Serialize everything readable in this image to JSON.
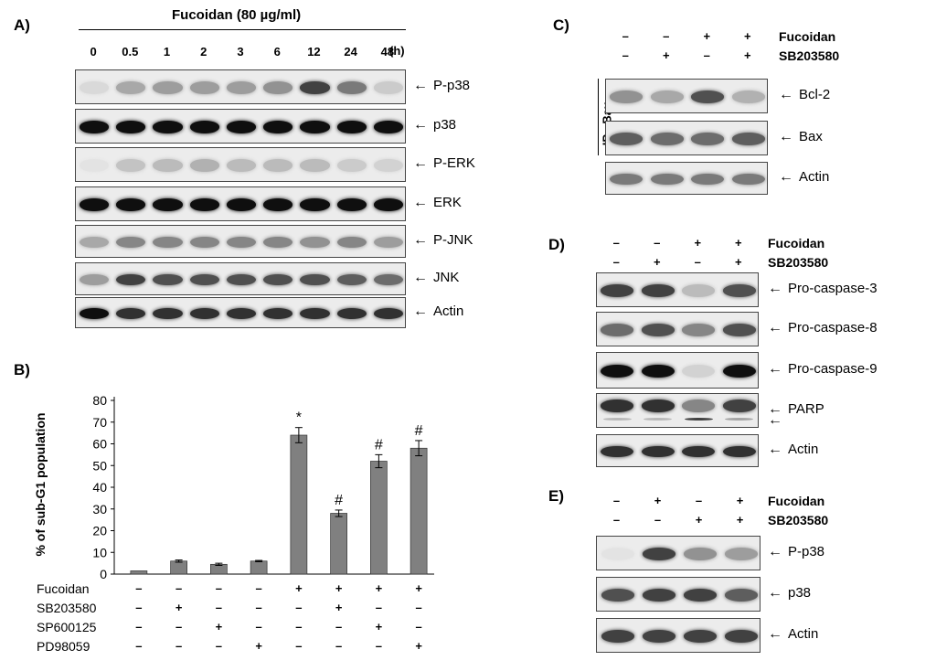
{
  "panelA": {
    "label": "A)",
    "treatment": "Fucoidan (80 µg/ml)",
    "timepoints": [
      "0",
      "0.5",
      "1",
      "2",
      "3",
      "6",
      "12",
      "24",
      "48"
    ],
    "time_unit": "(h)",
    "blots": [
      "P-p38",
      "p38",
      "P-ERK",
      "ERK",
      "P-JNK",
      "JNK",
      "Actin"
    ],
    "intensities": [
      [
        0.15,
        0.45,
        0.5,
        0.5,
        0.5,
        0.55,
        0.85,
        0.65,
        0.25
      ],
      [
        1,
        1,
        1,
        1,
        1,
        1,
        1,
        1,
        1
      ],
      [
        0.05,
        0.3,
        0.35,
        0.4,
        0.35,
        0.35,
        0.35,
        0.25,
        0.2
      ],
      [
        1,
        1,
        1,
        1,
        1,
        1,
        1,
        1,
        1
      ],
      [
        0.45,
        0.6,
        0.6,
        0.6,
        0.6,
        0.6,
        0.55,
        0.6,
        0.5
      ],
      [
        0.5,
        0.85,
        0.8,
        0.8,
        0.8,
        0.8,
        0.8,
        0.75,
        0.7
      ],
      [
        1,
        0.9,
        0.9,
        0.9,
        0.9,
        0.9,
        0.9,
        0.9,
        0.9
      ]
    ]
  },
  "panelB": {
    "label": "B)",
    "row_labels": [
      "Fucoidan",
      "SB203580",
      "SP600125",
      "PD98059"
    ],
    "conditions": [
      [
        "–",
        "–",
        "–",
        "–"
      ],
      [
        "–",
        "+",
        "–",
        "–"
      ],
      [
        "–",
        "–",
        "+",
        "–"
      ],
      [
        "–",
        "–",
        "–",
        "+"
      ],
      [
        "+",
        "–",
        "–",
        "–"
      ],
      [
        "+",
        "+",
        "–",
        "–"
      ],
      [
        "+",
        "–",
        "+",
        "–"
      ],
      [
        "+",
        "–",
        "–",
        "+"
      ]
    ],
    "significance": [
      "",
      "",
      "",
      "",
      "*",
      "#",
      "#",
      "#"
    ]
  },
  "chart_data": {
    "type": "bar",
    "categories": [
      "1",
      "2",
      "3",
      "4",
      "5",
      "6",
      "7",
      "8"
    ],
    "values": [
      1.5,
      6,
      4.5,
      6,
      64,
      28,
      52,
      58
    ],
    "errors": [
      0,
      0.5,
      0.5,
      0.3,
      3.5,
      1.5,
      3,
      3.5
    ],
    "ylabel": "% of sub-G1 population",
    "ylim": [
      0,
      80
    ],
    "yticks": [
      "0",
      "10",
      "20",
      "30",
      "40",
      "50",
      "60",
      "70",
      "80"
    ],
    "color": "#808080"
  },
  "panelC": {
    "label": "C)",
    "rows": [
      {
        "name": "Fucoidan",
        "signs": [
          "–",
          "–",
          "+",
          "+"
        ]
      },
      {
        "name": "SB203580",
        "signs": [
          "–",
          "+",
          "–",
          "+"
        ]
      }
    ],
    "side_label": "IP : Bax",
    "blots": [
      "Bcl-2",
      "Bax",
      "Actin"
    ],
    "intensities": [
      [
        0.55,
        0.45,
        0.8,
        0.4
      ],
      [
        0.75,
        0.7,
        0.7,
        0.75
      ],
      [
        0.65,
        0.65,
        0.65,
        0.65
      ]
    ]
  },
  "panelD": {
    "label": "D)",
    "rows": [
      {
        "name": "Fucoidan",
        "signs": [
          "–",
          "–",
          "+",
          "+"
        ]
      },
      {
        "name": "SB203580",
        "signs": [
          "–",
          "+",
          "–",
          "+"
        ]
      }
    ],
    "blots": [
      "Pro-caspase-3",
      "Pro-caspase-8",
      "Pro-caspase-9",
      "PARP",
      "Actin"
    ],
    "intensities": [
      [
        0.85,
        0.85,
        0.35,
        0.8
      ],
      [
        0.7,
        0.8,
        0.6,
        0.8
      ],
      [
        1,
        1,
        0.2,
        1
      ],
      [
        0.9,
        0.9,
        0.6,
        0.85
      ],
      [
        0.9,
        0.9,
        0.9,
        0.9
      ]
    ]
  },
  "panelE": {
    "label": "E)",
    "rows": [
      {
        "name": "Fucoidan",
        "signs": [
          "–",
          "+",
          "–",
          "+"
        ]
      },
      {
        "name": "SB203580",
        "signs": [
          "–",
          "–",
          "+",
          "+"
        ]
      }
    ],
    "blots": [
      "P-p38",
      "p38",
      "Actin"
    ],
    "intensities": [
      [
        0.05,
        0.85,
        0.55,
        0.5
      ],
      [
        0.8,
        0.85,
        0.85,
        0.75
      ],
      [
        0.85,
        0.85,
        0.85,
        0.85
      ]
    ]
  }
}
